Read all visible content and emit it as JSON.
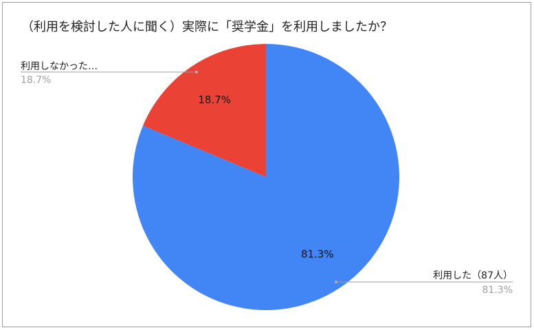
{
  "chart_data": {
    "type": "pie",
    "title": "（利用を検討した人に聞く）実際に「奨学金」を利用しましたか？",
    "slices": [
      {
        "label": "利用した（87人）",
        "value": 81.3,
        "value_label": "81.3%",
        "callout_percent": "81.3%",
        "color": "#4285f4"
      },
      {
        "label": "利用しなかった…",
        "value": 18.7,
        "value_label": "18.7%",
        "callout_percent": "18.7%",
        "color": "#ea4335"
      }
    ],
    "legend": "none",
    "start_angle": "12 o'clock, clockwise"
  }
}
